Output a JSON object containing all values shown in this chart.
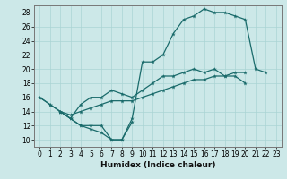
{
  "xlabel": "Humidex (Indice chaleur)",
  "xlim": [
    -0.5,
    23.5
  ],
  "ylim": [
    9,
    29
  ],
  "yticks": [
    10,
    12,
    14,
    16,
    18,
    20,
    22,
    24,
    26,
    28
  ],
  "xticks": [
    0,
    1,
    2,
    3,
    4,
    5,
    6,
    7,
    8,
    9,
    10,
    11,
    12,
    13,
    14,
    15,
    16,
    17,
    18,
    19,
    20,
    21,
    22,
    23
  ],
  "background_color": "#cce8e8",
  "line_color": "#1a6b6b",
  "grid_color": "#aad4d4",
  "line1_x": [
    0,
    1,
    2,
    3,
    4,
    5,
    6,
    7,
    8,
    9,
    10,
    11,
    12,
    13,
    14,
    15,
    16,
    17,
    18,
    19,
    20,
    21,
    22
  ],
  "line1_y": [
    16,
    15,
    14,
    13,
    12,
    12,
    12,
    10,
    10,
    13,
    21,
    21,
    22,
    25,
    27,
    27.5,
    28.5,
    28,
    28,
    27.5,
    27,
    20,
    19.5
  ],
  "line2_x": [
    0,
    1,
    2,
    3,
    4,
    5,
    6,
    7,
    8,
    9,
    10,
    11,
    12,
    13,
    14,
    15,
    16,
    17,
    18,
    19,
    20,
    21,
    22
  ],
  "line2_y": [
    16,
    15,
    14,
    13,
    15,
    16,
    16,
    17,
    16.5,
    16,
    17,
    18,
    19,
    19,
    19.5,
    20,
    19.5,
    20,
    19,
    19,
    18,
    null,
    null
  ],
  "line3_x": [
    2,
    3,
    4,
    5,
    6,
    7,
    8,
    9,
    10,
    11,
    12,
    13,
    14,
    15,
    16,
    17,
    18,
    19,
    20,
    21,
    22,
    23
  ],
  "line3_y": [
    14,
    13,
    12,
    11.5,
    11,
    10,
    10,
    12.5,
    null,
    null,
    null,
    null,
    null,
    null,
    null,
    null,
    null,
    null,
    null,
    null,
    null,
    null
  ],
  "line4_x": [
    2,
    3,
    4,
    5,
    6,
    7,
    8,
    9,
    10,
    11,
    12,
    13,
    14,
    15,
    16,
    17,
    18,
    19,
    20,
    21,
    22,
    23
  ],
  "line4_y": [
    14,
    13.5,
    14.0,
    14.5,
    15.0,
    15.5,
    15.5,
    15.5,
    16.0,
    16.5,
    17.0,
    17.5,
    18.0,
    18.5,
    18.5,
    19.0,
    19.0,
    19.5,
    19.5,
    null,
    null,
    null
  ]
}
